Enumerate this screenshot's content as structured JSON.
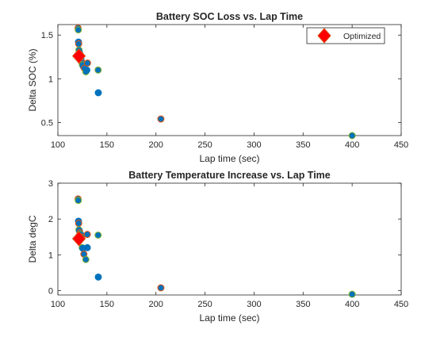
{
  "colors": {
    "point_fill": "#0072BD",
    "point_edge_alt": "#77AC30",
    "point_edge_alt2": "#D95319",
    "optimized_fill": "#FF0000",
    "optimized_edge": "#D95319",
    "axis": "#262626"
  },
  "chart_data": [
    {
      "type": "scatter",
      "title": "Battery SOC Loss vs. Lap Time",
      "xlabel": "Lap time (sec)",
      "ylabel": "Delta SOC (%)",
      "xlim": [
        100,
        450
      ],
      "ylim": [
        0.35,
        1.62
      ],
      "xticks": [
        "100",
        "150",
        "200",
        "250",
        "300",
        "350",
        "400",
        "450"
      ],
      "yticks": [
        "0.5",
        "1",
        "1.5"
      ],
      "ytick_values": [
        0.5,
        1,
        1.5
      ],
      "legend": {
        "entries": [
          "Optimized"
        ],
        "position": "top-right"
      },
      "series": [
        {
          "marker": "circle",
          "points": [
            [
              120.6,
              1.58
            ],
            [
              120.8,
              1.56
            ],
            [
              121.0,
              1.42
            ],
            [
              121.2,
              1.4
            ],
            [
              121.5,
              1.33
            ],
            [
              122.0,
              1.3
            ],
            [
              122.5,
              1.28
            ],
            [
              123.0,
              1.25
            ],
            [
              123.6,
              1.22
            ],
            [
              124.2,
              1.19
            ],
            [
              125.0,
              1.16
            ],
            [
              126.0,
              1.14
            ],
            [
              127.0,
              1.12
            ],
            [
              128.5,
              1.08
            ],
            [
              129.5,
              1.1
            ],
            [
              130.2,
              1.18
            ],
            [
              141.0,
              1.1
            ],
            [
              141.2,
              0.84
            ],
            [
              205.0,
              0.54
            ],
            [
              400.0,
              0.35
            ]
          ]
        },
        {
          "name": "Optimized",
          "marker": "diamond",
          "points": [
            [
              121.5,
              1.26
            ]
          ]
        }
      ]
    },
    {
      "type": "scatter",
      "title": "Battery Temperature Increase vs. Lap Time",
      "xlabel": "Lap time (sec)",
      "ylabel": "Delta degC",
      "xlim": [
        100,
        450
      ],
      "ylim": [
        -0.12,
        3
      ],
      "xticks": [
        "100",
        "150",
        "200",
        "250",
        "300",
        "350",
        "400",
        "450"
      ],
      "yticks": [
        "0",
        "1",
        "2",
        "3"
      ],
      "ytick_values": [
        0,
        1,
        2,
        3
      ],
      "series": [
        {
          "marker": "circle",
          "points": [
            [
              120.6,
              2.56
            ],
            [
              120.8,
              2.52
            ],
            [
              121.0,
              1.94
            ],
            [
              121.2,
              1.88
            ],
            [
              121.5,
              1.7
            ],
            [
              122.0,
              1.66
            ],
            [
              122.5,
              1.62
            ],
            [
              123.0,
              1.58
            ],
            [
              123.6,
              1.55
            ],
            [
              124.2,
              1.5
            ],
            [
              124.8,
              1.2
            ],
            [
              125.5,
              1.18
            ],
            [
              126.5,
              1.02
            ],
            [
              128.5,
              0.87
            ],
            [
              130.0,
              1.2
            ],
            [
              130.0,
              1.57
            ],
            [
              141.0,
              1.55
            ],
            [
              141.2,
              0.38
            ],
            [
              205.0,
              0.08
            ],
            [
              400.0,
              -0.1
            ]
          ]
        },
        {
          "name": "Optimized",
          "marker": "diamond",
          "points": [
            [
              121.5,
              1.45
            ]
          ]
        }
      ]
    }
  ]
}
